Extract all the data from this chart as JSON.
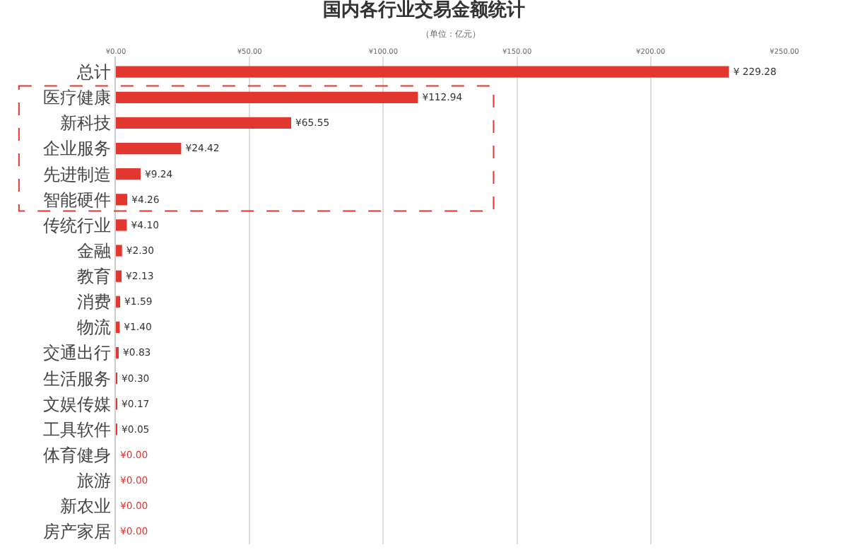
{
  "chart_data": {
    "type": "bar",
    "orientation": "horizontal",
    "title": "国内各行业交易金额统计",
    "subtitle": "（单位：亿元）",
    "categories": [
      "总计",
      "医疗健康",
      "新科技",
      "企业服务",
      "先进制造",
      "智能硬件",
      "传统行业",
      "金融",
      "教育",
      "消费",
      "物流",
      "交通出行",
      "生活服务",
      "文娱传媒",
      "工具软件",
      "体育健身",
      "旅游",
      "新农业",
      "房产家居"
    ],
    "values": [
      229.28,
      112.94,
      65.55,
      24.42,
      9.24,
      4.26,
      4.1,
      2.3,
      2.13,
      1.59,
      1.4,
      0.83,
      0.3,
      0.17,
      0.05,
      0,
      0,
      0,
      0
    ],
    "value_labels": [
      "¥ 229.28",
      "¥112.94",
      "¥65.55",
      "¥24.42",
      "¥9.24",
      "¥4.26",
      "¥4.10",
      "¥2.30",
      "¥2.13",
      "¥1.59",
      "¥1.40",
      "¥0.83",
      "¥0.30",
      "¥0.17",
      "¥0.05",
      "¥0.00",
      "¥0.00",
      "¥0.00",
      "¥0.00"
    ],
    "color": "#e2372f",
    "xlim": [
      0,
      250
    ],
    "xticks": [
      {
        "value": 0,
        "label": "¥0.00"
      },
      {
        "value": 50,
        "label": "¥50.00"
      },
      {
        "value": 100,
        "label": "¥100.00"
      },
      {
        "value": 150,
        "label": "¥150.00"
      },
      {
        "value": 200,
        "label": "¥200.00"
      },
      {
        "value": 250,
        "label": "¥250.00"
      }
    ],
    "grid": "x",
    "legend": false
  }
}
